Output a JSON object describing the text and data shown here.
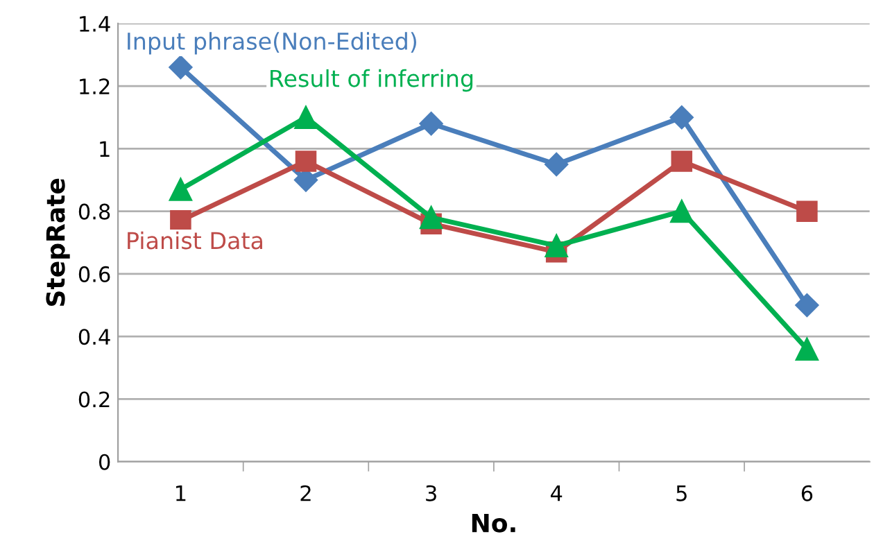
{
  "chart_data": {
    "type": "line",
    "xlabel": "No.",
    "ylabel": "StepRate",
    "categories": [
      "1",
      "2",
      "3",
      "4",
      "5",
      "6"
    ],
    "series": [
      {
        "name": "Input phrase(Non-Edited)",
        "color": "#4a7ebb",
        "marker": "diamond",
        "values": [
          1.26,
          0.9,
          1.08,
          0.95,
          1.1,
          0.5
        ]
      },
      {
        "name": "Result of inferring",
        "color": "#00b050",
        "marker": "triangle",
        "values": [
          0.87,
          1.1,
          0.78,
          0.69,
          0.8,
          0.36
        ]
      },
      {
        "name": "Pianist Data",
        "color": "#be4b48",
        "marker": "square",
        "values": [
          0.77,
          0.96,
          0.76,
          0.67,
          0.96,
          0.8
        ]
      }
    ],
    "ylim": [
      0,
      1.4
    ],
    "yticks": [
      0,
      0.2,
      0.4,
      0.6,
      0.8,
      1,
      1.2,
      1.4
    ],
    "grid": "y",
    "legend": false,
    "line_style": "solid"
  }
}
